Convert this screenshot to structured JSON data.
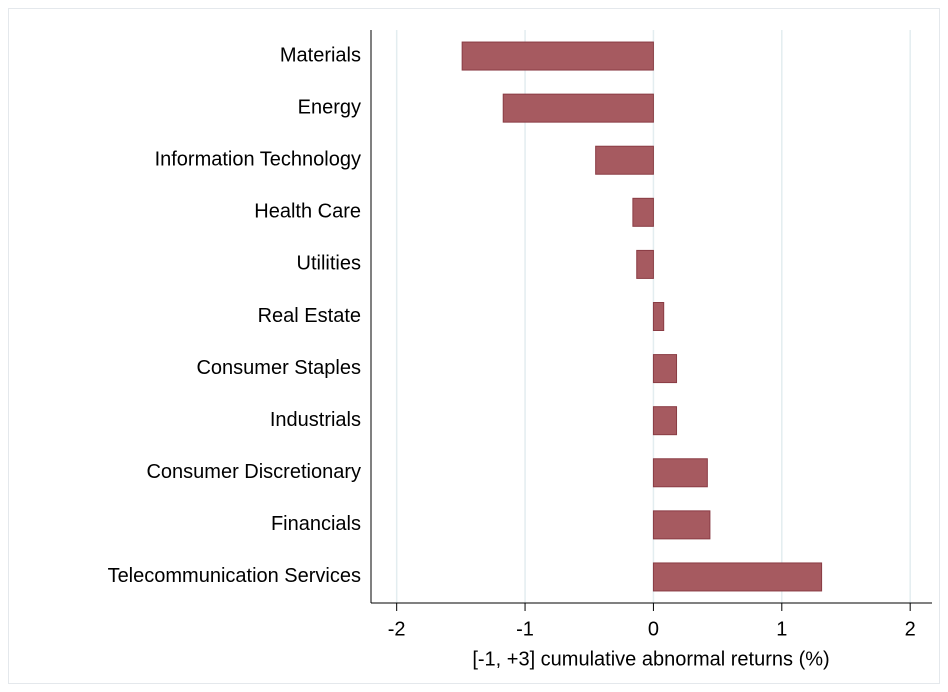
{
  "chart_data": {
    "type": "barh",
    "xlabel": "[-1, +3] cumulative abnormal returns (%)",
    "categories": [
      "Materials",
      "Energy",
      "Information Technology",
      "Health Care",
      "Utilities",
      "Real Estate",
      "Consumer Staples",
      "Industrials",
      "Consumer Discretionary",
      "Financials",
      "Telecommunication Services"
    ],
    "values": [
      -1.49,
      -1.17,
      -0.45,
      -0.16,
      -0.13,
      0.08,
      0.18,
      0.18,
      0.42,
      0.44,
      1.31
    ],
    "color": "#a65a60",
    "xlim": [
      -2.2,
      2.17
    ],
    "xticks": [
      -2,
      -1,
      0,
      1,
      2
    ],
    "grid": true
  }
}
